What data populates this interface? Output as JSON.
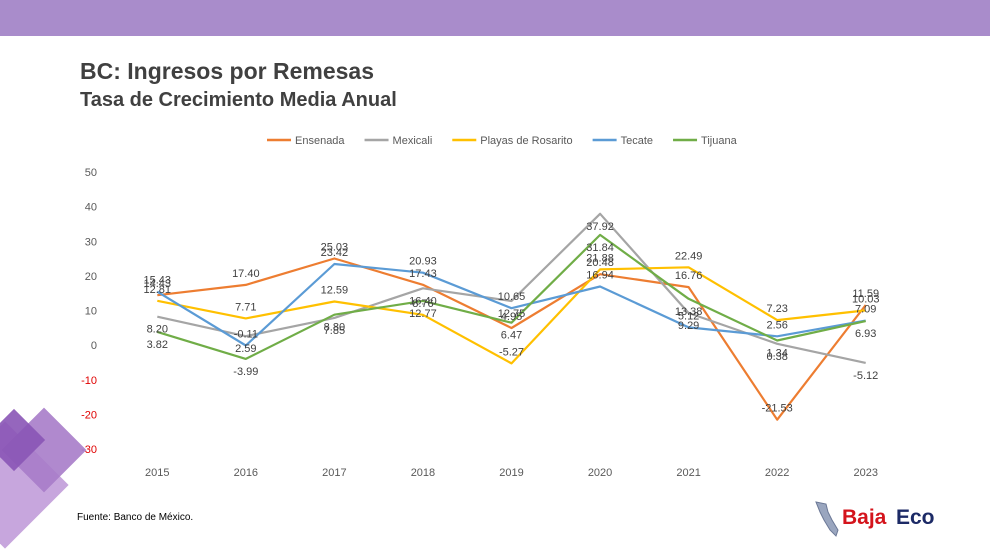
{
  "page": {
    "title": "BC: Ingresos por Remesas",
    "subtitle": "Tasa de Crecimiento Media Anual",
    "source": "Fuente: Banco de México.",
    "logo": {
      "part1": "Baja",
      "part2": "Eco"
    }
  },
  "chart_data": {
    "type": "line",
    "title": "",
    "xlabel": "",
    "ylabel": "",
    "categories": [
      "2015",
      "2016",
      "2017",
      "2018",
      "2019",
      "2020",
      "2021",
      "2022",
      "2023"
    ],
    "ylim": [
      -30,
      50
    ],
    "yticks": [
      -30,
      -20,
      -10,
      0,
      10,
      20,
      30,
      40,
      50
    ],
    "grid": false,
    "legend_position": "top",
    "negative_tick_color": "#e00000",
    "series": [
      {
        "name": "Ensenada",
        "color": "#ed7d31",
        "values": [
          14.43,
          17.4,
          25.03,
          17.43,
          4.95,
          20.48,
          16.76,
          -21.53,
          11.59
        ],
        "labels": [
          "14.43",
          "17.40",
          "25.03",
          "17.43",
          "4.95",
          "20.48",
          "16.76",
          "-21.53",
          "11.59"
        ]
      },
      {
        "name": "Mexicali",
        "color": "#a5a5a5",
        "values": [
          8.2,
          2.59,
          7.85,
          16.4,
          12.75,
          37.92,
          9.29,
          0.38,
          -5.12
        ],
        "labels": [
          "8.20",
          "2.59",
          "7.85",
          "16.40",
          "12.75",
          "37.92",
          "9.29",
          "0.38",
          "-5.12"
        ]
      },
      {
        "name": "Playas de Rosarito",
        "color": "#ffc000",
        "values": [
          12.81,
          7.71,
          12.59,
          8.76,
          -5.27,
          21.88,
          22.49,
          7.23,
          10.03
        ],
        "labels": [
          "12.81",
          "7.71",
          "12.59",
          "8.76",
          "-5.27",
          "21.88",
          "22.49",
          "7.23",
          "10.03"
        ]
      },
      {
        "name": "Tecate",
        "color": "#5b9bd5",
        "values": [
          15.43,
          -0.11,
          23.42,
          20.93,
          10.65,
          16.94,
          5.12,
          2.56,
          7.09
        ],
        "labels": [
          "15.43",
          "-0.11",
          "23.42",
          "20.93",
          "10.65",
          "16.94",
          "5.12",
          "2.56",
          "7.09"
        ]
      },
      {
        "name": "Tijuana",
        "color": "#70ad47",
        "values": [
          3.82,
          -3.99,
          8.8,
          12.77,
          6.47,
          31.84,
          13.38,
          1.34,
          6.93
        ],
        "labels": [
          "3.82",
          "-3.99",
          "8.80",
          "12.77",
          "6.47",
          "31.84",
          "13.38",
          "1.34",
          "6.93"
        ]
      }
    ]
  }
}
